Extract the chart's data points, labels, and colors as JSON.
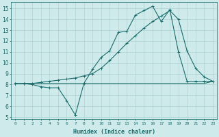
{
  "xlabel": "Humidex (Indice chaleur)",
  "ylabel": "",
  "bg_color": "#ceeaea",
  "line_color": "#1a6b6b",
  "grid_color": "#afd4d4",
  "xlim": [
    -0.5,
    23.5
  ],
  "ylim": [
    4.8,
    15.6
  ],
  "yticks": [
    5,
    6,
    7,
    8,
    9,
    10,
    11,
    12,
    13,
    14,
    15
  ],
  "xticks": [
    0,
    1,
    2,
    3,
    4,
    5,
    6,
    7,
    8,
    9,
    10,
    11,
    12,
    13,
    14,
    15,
    16,
    17,
    18,
    19,
    20,
    21,
    22,
    23
  ],
  "line1": [
    8.1,
    8.1,
    8.0,
    7.8,
    7.7,
    7.7,
    6.5,
    5.2,
    8.1,
    9.4,
    10.5,
    11.1,
    12.8,
    12.9,
    14.4,
    14.8,
    15.2,
    13.8,
    14.9,
    11.0,
    8.3,
    8.3,
    8.3,
    8.3
  ],
  "line2": [
    8.1,
    8.1,
    8.1,
    8.2,
    8.3,
    8.4,
    8.5,
    8.6,
    8.8,
    9.0,
    9.5,
    10.2,
    11.0,
    11.8,
    12.5,
    13.2,
    13.8,
    14.3,
    14.8,
    14.0,
    11.1,
    9.5,
    8.7,
    8.3
  ],
  "line3": [
    8.1,
    8.1,
    8.1,
    8.1,
    8.1,
    8.1,
    8.1,
    8.1,
    8.1,
    8.1,
    8.1,
    8.1,
    8.1,
    8.1,
    8.1,
    8.1,
    8.1,
    8.1,
    8.1,
    8.1,
    8.1,
    8.1,
    8.1,
    8.3
  ],
  "xlabel_fontsize": 6.0,
  "tick_fontsize_x": 4.5,
  "tick_fontsize_y": 5.5
}
